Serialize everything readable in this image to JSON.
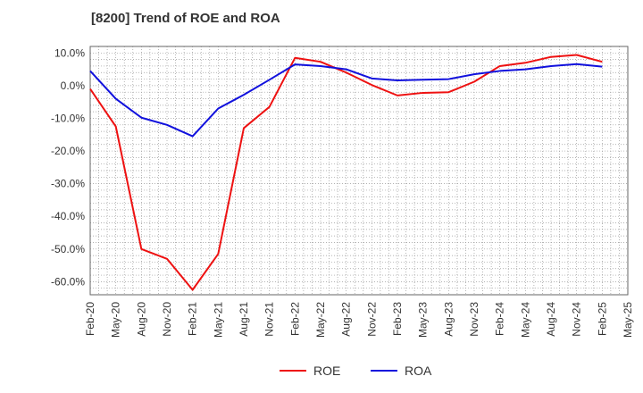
{
  "chart_data": {
    "type": "line",
    "title": "[8200]  Trend of ROE and ROA",
    "xlabel": "",
    "ylabel": "",
    "ylim": [
      -64,
      12
    ],
    "x_ticks": [
      "Feb-20",
      "May-20",
      "Aug-20",
      "Nov-20",
      "Feb-21",
      "May-21",
      "Aug-21",
      "Nov-21",
      "Feb-22",
      "May-22",
      "Aug-22",
      "Nov-22",
      "Feb-23",
      "May-23",
      "Aug-23",
      "Nov-23",
      "Feb-24",
      "May-24",
      "Aug-24",
      "Nov-24",
      "Feb-25",
      "May-25"
    ],
    "y_ticks": [
      10,
      0,
      -10,
      -20,
      -30,
      -40,
      -50,
      -60
    ],
    "y_tick_labels": [
      "10.0%",
      "0.0%",
      "-10.0%",
      "-20.0%",
      "-30.0%",
      "-40.0%",
      "-50.0%",
      "-60.0%"
    ],
    "grid": true,
    "legend_position": "bottom-center",
    "series": [
      {
        "name": "ROE",
        "color": "#ee1111",
        "x": [
          "Feb-20",
          "May-20",
          "Aug-20",
          "Nov-20",
          "Feb-21",
          "May-21",
          "Aug-21",
          "Nov-21",
          "Feb-22",
          "May-22",
          "Aug-22",
          "Nov-22",
          "Feb-23",
          "May-23",
          "Aug-23",
          "Nov-23",
          "Feb-24",
          "May-24",
          "Aug-24",
          "Nov-24",
          "Feb-25"
        ],
        "values": [
          -1.0,
          -12.5,
          -50.0,
          -53.0,
          -62.5,
          -51.5,
          -13.0,
          -6.5,
          8.5,
          7.3,
          4.0,
          0.2,
          -3.0,
          -2.2,
          -2.0,
          1.2,
          6.0,
          7.0,
          8.8,
          9.4,
          7.3
        ]
      },
      {
        "name": "ROA",
        "color": "#1111dd",
        "x": [
          "Feb-20",
          "May-20",
          "Aug-20",
          "Nov-20",
          "Feb-21",
          "May-21",
          "Aug-21",
          "Nov-21",
          "Feb-22",
          "May-22",
          "Aug-22",
          "Nov-22",
          "Feb-23",
          "May-23",
          "Aug-23",
          "Nov-23",
          "Feb-24",
          "May-24",
          "Aug-24",
          "Nov-24",
          "Feb-25"
        ],
        "values": [
          4.5,
          -4.0,
          -9.8,
          -12.0,
          -15.5,
          -7.0,
          -2.8,
          1.8,
          6.5,
          6.0,
          5.0,
          2.2,
          1.6,
          1.8,
          2.0,
          3.5,
          4.5,
          5.0,
          6.0,
          6.6,
          5.8
        ]
      }
    ]
  }
}
